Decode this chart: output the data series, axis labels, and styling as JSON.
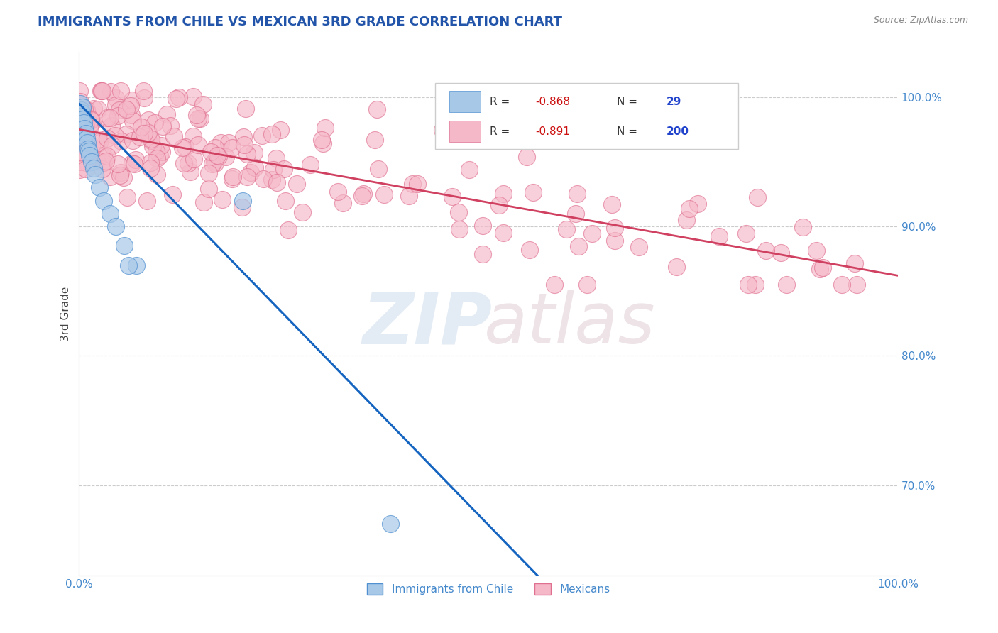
{
  "title": "IMMIGRANTS FROM CHILE VS MEXICAN 3RD GRADE CORRELATION CHART",
  "source": "Source: ZipAtlas.com",
  "ylabel": "3rd Grade",
  "ytick_vals": [
    0.7,
    0.8,
    0.9,
    1.0
  ],
  "ytick_labels": [
    "70.0%",
    "80.0%",
    "90.0%",
    "100.0%"
  ],
  "xmin": 0.0,
  "xmax": 1.0,
  "ymin": 0.63,
  "ymax": 1.035,
  "chile_R": -0.868,
  "chile_N": 29,
  "mexican_R": -0.891,
  "mexican_N": 200,
  "chile_color": "#a8c8e8",
  "chile_edge_color": "#5090d0",
  "chile_line_color": "#1565c0",
  "mexican_color": "#f5b8c8",
  "mexican_edge_color": "#e07090",
  "mexican_line_color": "#d04060",
  "grid_color": "#cccccc",
  "title_color": "#2255aa",
  "axis_label_color": "#444444",
  "tick_color": "#4488cc",
  "source_color": "#888888",
  "legend_border_color": "#cccccc",
  "mexico_scatter_seed": 42,
  "chile_scatter_x": [
    0.001,
    0.002,
    0.003,
    0.003,
    0.004,
    0.004,
    0.005,
    0.005,
    0.006,
    0.007,
    0.007,
    0.008,
    0.009,
    0.01,
    0.011,
    0.012,
    0.013,
    0.015,
    0.018,
    0.02,
    0.025,
    0.03,
    0.038,
    0.045,
    0.055,
    0.07,
    0.2,
    0.38,
    0.06
  ],
  "chile_scatter_y": [
    0.995,
    0.99,
    0.988,
    0.985,
    0.992,
    0.978,
    0.983,
    0.975,
    0.98,
    0.97,
    0.976,
    0.972,
    0.968,
    0.965,
    0.96,
    0.958,
    0.955,
    0.95,
    0.945,
    0.94,
    0.93,
    0.92,
    0.91,
    0.9,
    0.885,
    0.87,
    0.92,
    0.67,
    0.87
  ],
  "chile_line_x0": 0.0,
  "chile_line_y0": 0.995,
  "chile_line_x1": 0.56,
  "chile_line_y1": 0.63,
  "mex_line_x0": 0.0,
  "mex_line_y0": 0.975,
  "mex_line_x1": 1.0,
  "mex_line_y1": 0.862
}
